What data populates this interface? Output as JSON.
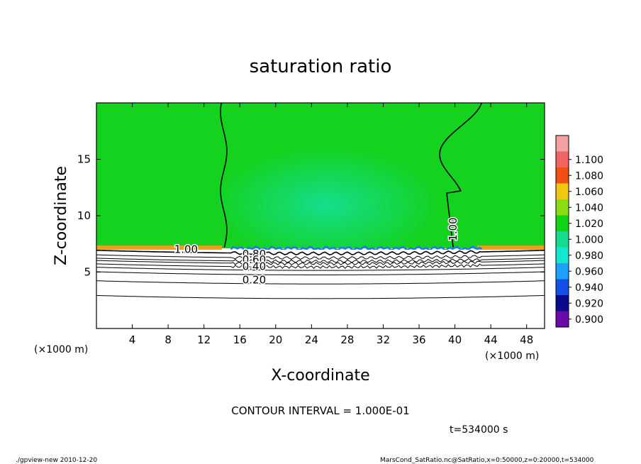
{
  "chart_data": {
    "type": "heatmap",
    "title": "saturation ratio",
    "xlabel": "X-coordinate",
    "ylabel": "Z-coordinate",
    "x_unit_label": "(×1000 m)",
    "y_unit_label": "(×1000 m)",
    "xlim": [
      0,
      50
    ],
    "ylim": [
      0,
      20
    ],
    "x_ticks": [
      4,
      8,
      12,
      16,
      20,
      24,
      28,
      32,
      36,
      40,
      44,
      48
    ],
    "y_ticks": [
      5,
      10,
      15
    ],
    "colorbar": {
      "levels": [
        "0.900",
        "0.920",
        "0.940",
        "0.960",
        "0.980",
        "1.000",
        "1.020",
        "1.040",
        "1.060",
        "1.080",
        "1.100"
      ],
      "colors": [
        "#6a0aa8",
        "#0a0a8c",
        "#1450e6",
        "#1ea0ff",
        "#14e6d2",
        "#14dc8c",
        "#14d214",
        "#8cdc14",
        "#f0c814",
        "#f05014",
        "#f06464",
        "#f5a0a0"
      ]
    },
    "contour_labels": [
      {
        "text": "1.00",
        "x": 10.0,
        "z": 7.0
      },
      {
        "text": "1.00",
        "x": 39.8,
        "z": 8.8
      },
      {
        "text": "0.80",
        "x": 17.6,
        "z": 6.6
      },
      {
        "text": "0.60",
        "x": 17.6,
        "z": 6.1
      },
      {
        "text": "0.40",
        "x": 17.6,
        "z": 5.5
      },
      {
        "text": "0.20",
        "x": 17.6,
        "z": 4.3
      }
    ],
    "contour_lines_z_at_x20": [
      7.0,
      6.6,
      6.3,
      6.1,
      5.8,
      5.5,
      5.1,
      4.3,
      3.0
    ],
    "saturation_interface_z": 7.1,
    "contour_interval_text": "CONTOUR INTERVAL = 1.000E-01",
    "time_text": "t=534000 s"
  },
  "footer": {
    "left": "./gpview-new   2010-12-20",
    "right": "MarsCond_SatRatio.nc@SatRatio,x=0:50000,z=0:20000,t=534000"
  }
}
